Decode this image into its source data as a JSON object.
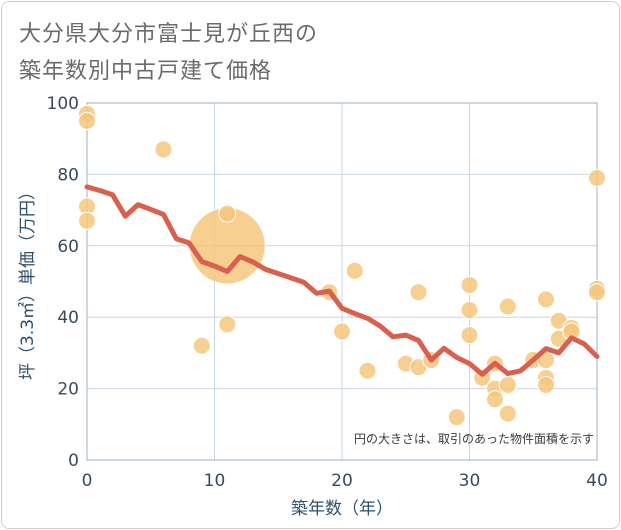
{
  "title": {
    "line1": "大分県大分市富士見が丘西の",
    "line2": "築年数別中古戸建て価格"
  },
  "note": "円の大きさは、取引のあった物件面積を示す",
  "colors": {
    "bubble": "#f5c77e",
    "trend": "#d9604f",
    "grid": "#c9d6e3",
    "plot_border": "#9eb0c2"
  },
  "chart_data": {
    "type": "scatter",
    "xlabel": "築年数（年）",
    "ylabel": "坪（3.3㎡）単価（万円）",
    "xlim": [
      0,
      40
    ],
    "ylim": [
      0,
      100
    ],
    "x_ticks": [
      0,
      10,
      20,
      30,
      40
    ],
    "y_ticks": [
      0,
      20,
      40,
      60,
      80,
      100
    ],
    "x_tick_labels": [
      "0",
      "10",
      "20",
      "30",
      "40"
    ],
    "y_tick_labels": [
      "0",
      "20",
      "40",
      "60",
      "80",
      "100"
    ],
    "grid": true,
    "bubbles": [
      {
        "x": 0,
        "y": 97,
        "size": 1
      },
      {
        "x": 0,
        "y": 95,
        "size": 1
      },
      {
        "x": 0,
        "y": 71,
        "size": 1
      },
      {
        "x": 0,
        "y": 67,
        "size": 1
      },
      {
        "x": 6,
        "y": 87,
        "size": 1
      },
      {
        "x": 9,
        "y": 32,
        "size": 1
      },
      {
        "x": 11,
        "y": 69,
        "size": 1
      },
      {
        "x": 11,
        "y": 60,
        "size": 20
      },
      {
        "x": 11,
        "y": 38,
        "size": 1
      },
      {
        "x": 19,
        "y": 47,
        "size": 1
      },
      {
        "x": 20,
        "y": 36,
        "size": 1
      },
      {
        "x": 21,
        "y": 53,
        "size": 1
      },
      {
        "x": 22,
        "y": 25,
        "size": 1
      },
      {
        "x": 25,
        "y": 27,
        "size": 1
      },
      {
        "x": 26,
        "y": 47,
        "size": 1
      },
      {
        "x": 26,
        "y": 26,
        "size": 1
      },
      {
        "x": 27,
        "y": 28,
        "size": 1
      },
      {
        "x": 29,
        "y": 12,
        "size": 1
      },
      {
        "x": 30,
        "y": 49,
        "size": 1
      },
      {
        "x": 30,
        "y": 42,
        "size": 1
      },
      {
        "x": 30,
        "y": 35,
        "size": 1
      },
      {
        "x": 31,
        "y": 23,
        "size": 1
      },
      {
        "x": 32,
        "y": 27,
        "size": 1
      },
      {
        "x": 32,
        "y": 20,
        "size": 1
      },
      {
        "x": 32,
        "y": 17,
        "size": 1
      },
      {
        "x": 33,
        "y": 43,
        "size": 1
      },
      {
        "x": 33,
        "y": 21,
        "size": 1
      },
      {
        "x": 33,
        "y": 13,
        "size": 1
      },
      {
        "x": 35,
        "y": 28,
        "size": 1
      },
      {
        "x": 36,
        "y": 45,
        "size": 1
      },
      {
        "x": 36,
        "y": 28,
        "size": 1
      },
      {
        "x": 36,
        "y": 23,
        "size": 1
      },
      {
        "x": 36,
        "y": 21,
        "size": 1
      },
      {
        "x": 37,
        "y": 39,
        "size": 1
      },
      {
        "x": 37,
        "y": 34,
        "size": 1
      },
      {
        "x": 38,
        "y": 37,
        "size": 1
      },
      {
        "x": 38,
        "y": 36,
        "size": 1
      },
      {
        "x": 40,
        "y": 79,
        "size": 1
      },
      {
        "x": 40,
        "y": 48,
        "size": 1
      },
      {
        "x": 40,
        "y": 47,
        "size": 1
      }
    ],
    "trend_line": {
      "x": [
        0,
        1,
        2,
        3,
        4,
        5,
        6,
        7,
        8,
        9,
        10,
        11,
        12,
        13,
        14,
        15,
        16,
        17,
        18,
        19,
        20,
        21,
        22,
        23,
        24,
        25,
        26,
        27,
        28,
        29,
        30,
        31,
        32,
        33,
        34,
        35,
        36,
        37,
        38,
        39,
        40
      ],
      "y": [
        76.5,
        75.5,
        74.3,
        68.3,
        71.5,
        70.2,
        68.8,
        62.0,
        60.8,
        55.6,
        54.3,
        52.8,
        57.0,
        55.5,
        53.4,
        52.2,
        51.0,
        49.8,
        46.7,
        47.3,
        42.5,
        41.0,
        39.7,
        37.5,
        34.5,
        35.0,
        33.5,
        28.0,
        31.3,
        28.7,
        27.0,
        24.0,
        27.1,
        24.2,
        25.0,
        28.0,
        31.2,
        30.0,
        34.2,
        32.5,
        29.0
      ]
    }
  }
}
